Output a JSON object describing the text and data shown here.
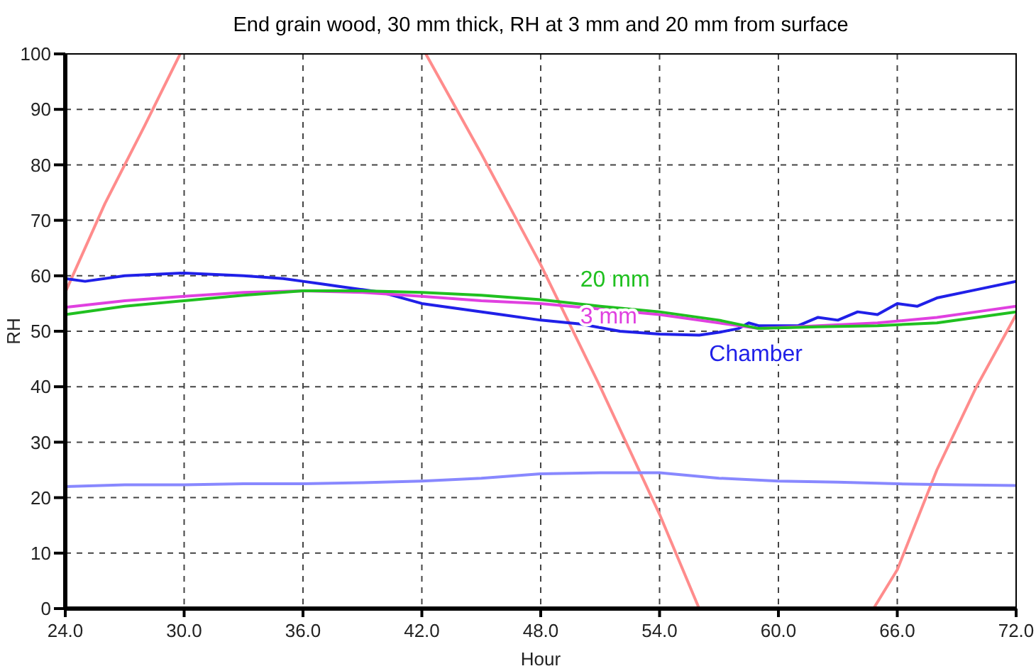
{
  "chart_data": {
    "type": "line",
    "title": "End grain wood, 30 mm thick, RH at 3 mm and 20 mm from surface",
    "xlabel": "Hour",
    "ylabel": "RH",
    "xlim": [
      24,
      72
    ],
    "ylim": [
      0,
      100
    ],
    "xticks": [
      {
        "value": 24,
        "label": "24.0"
      },
      {
        "value": 30,
        "label": "30.0"
      },
      {
        "value": 36,
        "label": "36.0"
      },
      {
        "value": 42,
        "label": "42.0"
      },
      {
        "value": 48,
        "label": "48.0"
      },
      {
        "value": 54,
        "label": "54.0"
      },
      {
        "value": 60,
        "label": "60.0"
      },
      {
        "value": 66,
        "label": "66.0"
      },
      {
        "value": 72,
        "label": "72.0"
      }
    ],
    "yticks": [
      0,
      10,
      20,
      30,
      40,
      50,
      60,
      70,
      80,
      90,
      100
    ],
    "grid": true,
    "marker": "none",
    "line_style": "solid",
    "series": [
      {
        "color": "#ff8c8c",
        "x": [
          24,
          26,
          28,
          29.8,
          36,
          42.2,
          45,
          48,
          51,
          54,
          56,
          60,
          64.8,
          66,
          68,
          70,
          72
        ],
        "values": [
          57,
          73,
          87,
          100,
          null,
          100,
          82,
          62,
          40,
          17,
          0,
          null,
          0,
          7,
          25,
          40,
          53
        ]
      },
      {
        "color": "#8888ff",
        "x": [
          24,
          27,
          30,
          33,
          36,
          39,
          42,
          45,
          48,
          51,
          54,
          57,
          60,
          63,
          66,
          69,
          72
        ],
        "values": [
          22,
          22.3,
          22.3,
          22.5,
          22.5,
          22.7,
          23,
          23.5,
          24.3,
          24.5,
          24.5,
          23.5,
          23,
          22.8,
          22.5,
          22.3,
          22.2
        ]
      },
      {
        "name": "Chamber",
        "color": "#2020e8",
        "x": [
          24,
          25,
          27,
          30,
          33,
          35,
          36,
          37,
          38,
          39,
          40,
          41,
          42,
          44,
          46,
          48,
          50,
          52,
          54,
          56,
          57,
          58,
          58.5,
          59,
          61,
          62,
          63,
          64,
          65,
          66,
          67,
          68,
          70,
          72
        ],
        "values": [
          59.5,
          59,
          60,
          60.5,
          60,
          59.5,
          59,
          58.5,
          58,
          57.5,
          57,
          56,
          55,
          54,
          53,
          52,
          51.3,
          50,
          49.5,
          49.3,
          49.8,
          50.5,
          51.5,
          51,
          51,
          52.5,
          52,
          53.5,
          53,
          55,
          54.5,
          56,
          57.5,
          59
        ]
      },
      {
        "name": "3 mm",
        "color": "#e040e0",
        "x": [
          24,
          27,
          30,
          33,
          36,
          39,
          42,
          45,
          48,
          51,
          54,
          57,
          59,
          62,
          65,
          68,
          70,
          72
        ],
        "values": [
          54.3,
          55.5,
          56.3,
          57,
          57.3,
          57,
          56.3,
          55.5,
          55,
          54,
          53,
          51.5,
          50.5,
          51,
          51.5,
          52.5,
          53.5,
          54.5
        ]
      },
      {
        "name": "20 mm",
        "color": "#20c020",
        "x": [
          24,
          27,
          30,
          33,
          36,
          39,
          42,
          45,
          48,
          51,
          54,
          57,
          59,
          62,
          65,
          68,
          70,
          72
        ],
        "values": [
          53,
          54.5,
          55.5,
          56.5,
          57.3,
          57.3,
          57,
          56.5,
          55.7,
          54.5,
          53.5,
          52,
          50.5,
          50.8,
          51,
          51.5,
          52.5,
          53.5
        ]
      }
    ]
  }
}
